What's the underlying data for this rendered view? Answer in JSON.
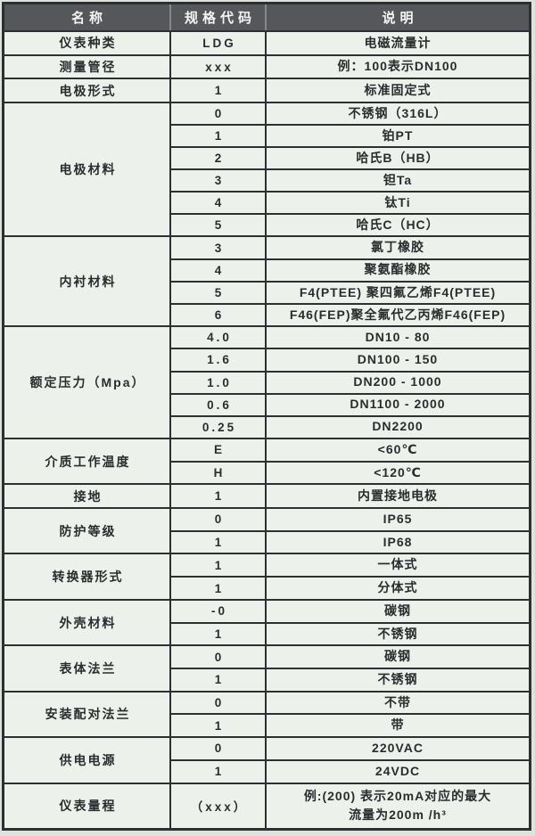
{
  "colors": {
    "header_bg": "#56575a",
    "header_fg": "#f4f4f2",
    "table_bg": "#edf1ec",
    "border": "#2e2f31",
    "page_bg": "#dfe3de"
  },
  "table": {
    "headers": [
      "名称",
      "规格代码",
      "说明"
    ],
    "groups": [
      {
        "name": "仪表种类",
        "rows": [
          {
            "code": "LDG",
            "desc": "电磁流量计"
          }
        ]
      },
      {
        "name": "测量管径",
        "rows": [
          {
            "code": "xxx",
            "desc": "例：100表示DN100"
          }
        ]
      },
      {
        "name": "电极形式",
        "rows": [
          {
            "code": "1",
            "desc": "标准固定式"
          }
        ]
      },
      {
        "name": "电极材料",
        "rows": [
          {
            "code": "0",
            "desc": "不锈钢（316L）"
          },
          {
            "code": "1",
            "desc": "铂PT"
          },
          {
            "code": "2",
            "desc": "哈氏B（HB）"
          },
          {
            "code": "3",
            "desc": "钽Ta"
          },
          {
            "code": "4",
            "desc": "钛Ti"
          },
          {
            "code": "5",
            "desc": "哈氏C（HC）"
          }
        ]
      },
      {
        "name": "内衬材料",
        "rows": [
          {
            "code": "3",
            "desc": "氯丁橡胶"
          },
          {
            "code": "4",
            "desc": "聚氨酯橡胶"
          },
          {
            "code": "5",
            "desc": "F4(PTEE) 聚四氟乙烯F4(PTEE)"
          },
          {
            "code": "6",
            "desc": "F46(FEP)聚全氟代乙丙烯F46(FEP)"
          }
        ]
      },
      {
        "name": "额定压力（Mpa）",
        "rows": [
          {
            "code": "4.0",
            "desc": "DN10 - 80"
          },
          {
            "code": "1.6",
            "desc": "DN100 - 150"
          },
          {
            "code": "1.0",
            "desc": "DN200 - 1000"
          },
          {
            "code": "0.6",
            "desc": "DN1100 - 2000"
          },
          {
            "code": "0.25",
            "desc": "DN2200"
          }
        ]
      },
      {
        "name": "介质工作温度",
        "rows": [
          {
            "code": "E",
            "desc": "<60℃"
          },
          {
            "code": "H",
            "desc": "<120℃"
          }
        ]
      },
      {
        "name": "接地",
        "rows": [
          {
            "code": "1",
            "desc": "内置接地电极"
          }
        ]
      },
      {
        "name": "防护等级",
        "rows": [
          {
            "code": "0",
            "desc": "IP65"
          },
          {
            "code": "1",
            "desc": "IP68"
          }
        ]
      },
      {
        "name": "转换器形式",
        "rows": [
          {
            "code": "1",
            "desc": "一体式"
          },
          {
            "code": "1",
            "desc": "分体式"
          }
        ]
      },
      {
        "name": "外壳材料",
        "rows": [
          {
            "code": "-0",
            "desc": "碳钢"
          },
          {
            "code": "1",
            "desc": "不锈钢"
          }
        ]
      },
      {
        "name": "表体法兰",
        "rows": [
          {
            "code": "0",
            "desc": "碳钢"
          },
          {
            "code": "1",
            "desc": "不锈钢"
          }
        ]
      },
      {
        "name": "安装配对法兰",
        "rows": [
          {
            "code": "0",
            "desc": "不带"
          },
          {
            "code": "1",
            "desc": "带"
          }
        ]
      },
      {
        "name": "供电电源",
        "rows": [
          {
            "code": "0",
            "desc": "220VAC"
          },
          {
            "code": "1",
            "desc": "24VDC"
          }
        ]
      },
      {
        "name": "仪表量程",
        "rows": [
          {
            "code": "（xxx）",
            "desc": "例:(200) 表示20mA对应的最大\n流量为200m /h³",
            "tall": true
          }
        ]
      }
    ]
  }
}
